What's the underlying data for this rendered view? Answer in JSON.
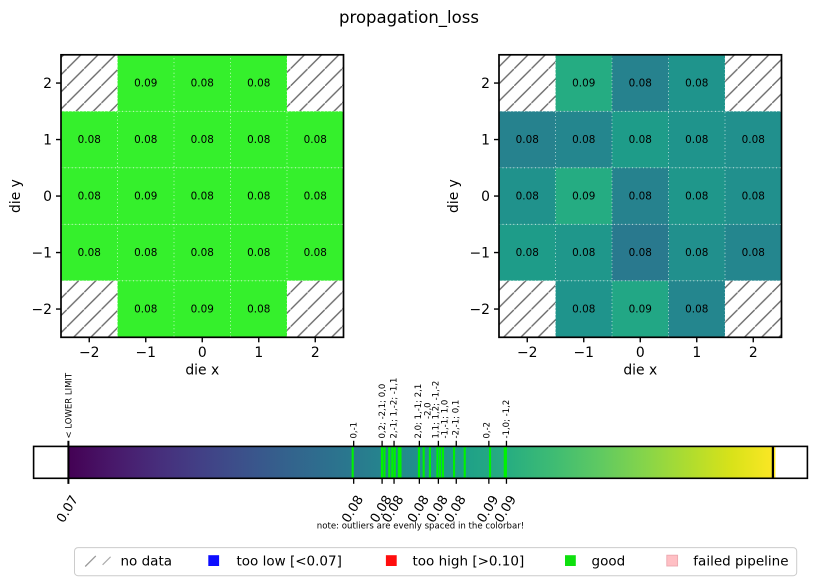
{
  "chart_data": {
    "type": "heatmap",
    "title": "propagation_loss",
    "xlabel": "die x",
    "ylabel": "die y",
    "x_values": [
      -2,
      -1,
      0,
      1,
      2
    ],
    "y_values": [
      2,
      1,
      0,
      -1,
      -2
    ],
    "x_tick_labels": [
      "−2",
      "−1",
      "0",
      "1",
      "2"
    ],
    "y_tick_labels": [
      "2",
      "1",
      "0",
      "−1",
      "−2"
    ],
    "no_data_cells": [
      [
        -2,
        2
      ],
      [
        2,
        2
      ],
      [
        -2,
        -2
      ],
      [
        2,
        -2
      ]
    ],
    "groups": [
      {
        "annotation": "0,-1",
        "t": 0.4033,
        "tick_label": "0.08",
        "color": "#29798e",
        "dies": [
          [
            0,
            -1
          ]
        ]
      },
      {
        "annotation": "0,2; -2,1; 0,0",
        "t": 0.4434,
        "tick_label": "0.08",
        "color": "#26828e",
        "dies": [
          [
            0,
            2
          ],
          [
            -2,
            1
          ],
          [
            0,
            0
          ]
        ]
      },
      {
        "annotation": "2,-1; 1,-2; -1,1",
        "t": 0.4596,
        "tick_label": "0.08",
        "color": "#24868e",
        "dies": [
          [
            2,
            -1
          ],
          [
            1,
            -2
          ],
          [
            -1,
            1
          ]
        ]
      },
      {
        "annotation": "2,0; 1,-1; 2,1",
        "t": 0.4962,
        "tick_label": "0.08",
        "color": "#21908d",
        "dies": [
          [
            2,
            0
          ],
          [
            1,
            -1
          ],
          [
            2,
            1
          ]
        ]
      },
      {
        "annotation": "-2,0",
        "t": 0.5084,
        "tick_label": "0.08",
        "color": "#20928c",
        "dies": [
          [
            -2,
            0
          ]
        ]
      },
      {
        "annotation": "1,1; 1,2; -1,-2",
        "t": 0.5162,
        "tick_label": "0.08",
        "color": "#1f948c",
        "dies": [
          [
            1,
            1
          ],
          [
            1,
            2
          ],
          [
            -1,
            -2
          ]
        ]
      },
      {
        "annotation": "-1,-1; 1,0",
        "t": 0.5296,
        "tick_label": "0.08",
        "color": "#1f978b",
        "dies": [
          [
            -1,
            -1
          ],
          [
            1,
            0
          ]
        ]
      },
      {
        "annotation": "-2,-1; 0,1",
        "t": 0.5486,
        "tick_label": "0.08",
        "color": "#1e9c89",
        "dies": [
          [
            -2,
            -1
          ],
          [
            0,
            1
          ]
        ]
      },
      {
        "annotation": "0,-2",
        "t": 0.5951,
        "tick_label": "0.09",
        "color": "#22a785",
        "dies": [
          [
            0,
            -2
          ]
        ]
      },
      {
        "annotation": "-1,0; -1,2",
        "t": 0.6165,
        "tick_label": "0.09",
        "color": "#25ac82",
        "dies": [
          [
            -1,
            0
          ],
          [
            -1,
            2
          ]
        ]
      }
    ],
    "colorbar": {
      "lower_limit_annotation": "< LOWER LIMIT",
      "lower_limit_tick_label": "0.07",
      "note": "note: outliers are evenly spaced in the colorbar!",
      "axis_tick_ts": [
        0.4035,
        0.4437,
        0.4606,
        0.4964,
        0.5233,
        0.5486,
        0.5947,
        0.6196
      ],
      "axis_tick_labels": [
        "0.08",
        "0.08",
        "0.08",
        "0.08",
        "0.08",
        "0.08",
        "0.09",
        "0.09"
      ],
      "annotation_ts": [
        0.4033,
        0.4437,
        0.46,
        0.4945,
        0.508,
        0.519,
        0.5317,
        0.5472,
        0.591,
        0.619
      ],
      "annotation_raised": [
        false,
        false,
        false,
        false,
        true,
        false,
        false,
        false,
        false,
        false
      ],
      "die_line_ts": [
        0.4021,
        0.4435,
        0.4471,
        0.4538,
        0.4581,
        0.4616,
        0.4674,
        0.4697,
        0.4958,
        0.5025,
        0.5114,
        0.5219,
        0.5258,
        0.5298,
        0.5455,
        0.5606,
        0.5964,
        0.6172,
        0.6188
      ]
    },
    "legend": {
      "items": [
        {
          "label": "no data",
          "swatch": "hatch"
        },
        {
          "label": "too low [<0.07]",
          "swatch": "#0d0dff"
        },
        {
          "label": "too high [>0.10]",
          "swatch": "#ff0d0d"
        },
        {
          "label": "good",
          "swatch": "#0ee00e"
        },
        {
          "label": "failed pipeline",
          "swatch": "#ffbfc4"
        }
      ]
    },
    "colors": {
      "good_cell": "#35f02c",
      "die_line": "#00f200",
      "hatch": "#686868",
      "grid_dots": "#ffffff",
      "viridis_stops": [
        [
          0.0,
          "#440154"
        ],
        [
          0.0625,
          "#48186a"
        ],
        [
          0.125,
          "#472d7b"
        ],
        [
          0.1875,
          "#424086"
        ],
        [
          0.25,
          "#3b528b"
        ],
        [
          0.3125,
          "#33638d"
        ],
        [
          0.375,
          "#2c728e"
        ],
        [
          0.4375,
          "#26828e"
        ],
        [
          0.5,
          "#21918c"
        ],
        [
          0.5625,
          "#1fa088"
        ],
        [
          0.625,
          "#28ae80"
        ],
        [
          0.6875,
          "#3fbc73"
        ],
        [
          0.75,
          "#5ec962"
        ],
        [
          0.8125,
          "#84d44b"
        ],
        [
          0.875,
          "#addc30"
        ],
        [
          0.9375,
          "#d8e219"
        ],
        [
          1.0,
          "#fde725"
        ]
      ]
    }
  }
}
